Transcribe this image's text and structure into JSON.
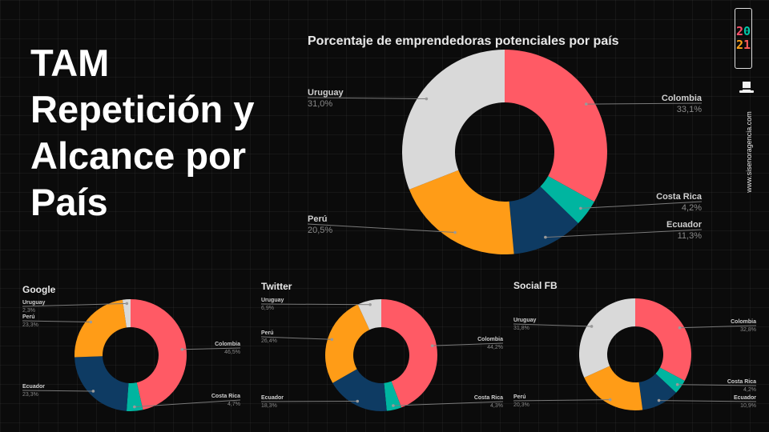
{
  "slide": {
    "title_lines": [
      "TAM",
      "Repetición y",
      "Alcance por",
      "País"
    ]
  },
  "branding": {
    "logo_digits": [
      "2",
      "0",
      "2",
      "1"
    ],
    "url": "www.sisenoragencia.com",
    "icons": [
      "year-2021-logo-icon",
      "top-hat-icon"
    ]
  },
  "colors": {
    "Colombia": "#ff5a65",
    "Costa Rica": "#00b5a0",
    "Ecuador": "#0e3b63",
    "Perú": "#ff9c17",
    "Uruguay": "#d9d9d9"
  },
  "chart_data": [
    {
      "type": "pie",
      "title": "Porcentaje de emprendedoras potenciales por país",
      "donut": true,
      "labels": [
        "Colombia",
        "Costa Rica",
        "Ecuador",
        "Perú",
        "Uruguay"
      ],
      "values": [
        33.1,
        4.2,
        11.3,
        20.5,
        31.0
      ],
      "value_labels": [
        "33,1%",
        "4,2%",
        "11,3%",
        "20,5%",
        "31,0%"
      ]
    },
    {
      "type": "pie",
      "title": "Google",
      "donut": true,
      "labels": [
        "Colombia",
        "Costa Rica",
        "Ecuador",
        "Perú",
        "Uruguay"
      ],
      "values": [
        46.5,
        4.7,
        23.3,
        23.3,
        2.3
      ],
      "value_labels": [
        "46,5%",
        "4,7%",
        "23,3%",
        "23,3%",
        "2,3%"
      ]
    },
    {
      "type": "pie",
      "title": "Twitter",
      "donut": true,
      "labels": [
        "Colombia",
        "Costa Rica",
        "Ecuador",
        "Perú",
        "Uruguay"
      ],
      "values": [
        44.2,
        4.3,
        18.3,
        26.4,
        6.9
      ],
      "value_labels": [
        "44,2%",
        "4,3%",
        "18,3%",
        "26,4%",
        "6,9%"
      ]
    },
    {
      "type": "pie",
      "title": "Social FB",
      "donut": true,
      "labels": [
        "Colombia",
        "Costa Rica",
        "Ecuador",
        "Perú",
        "Uruguay"
      ],
      "values": [
        32.8,
        4.2,
        10.9,
        20.3,
        31.8
      ],
      "value_labels": [
        "32,8%",
        "4,2%",
        "10,9%",
        "20,3%",
        "31,8%"
      ]
    }
  ]
}
